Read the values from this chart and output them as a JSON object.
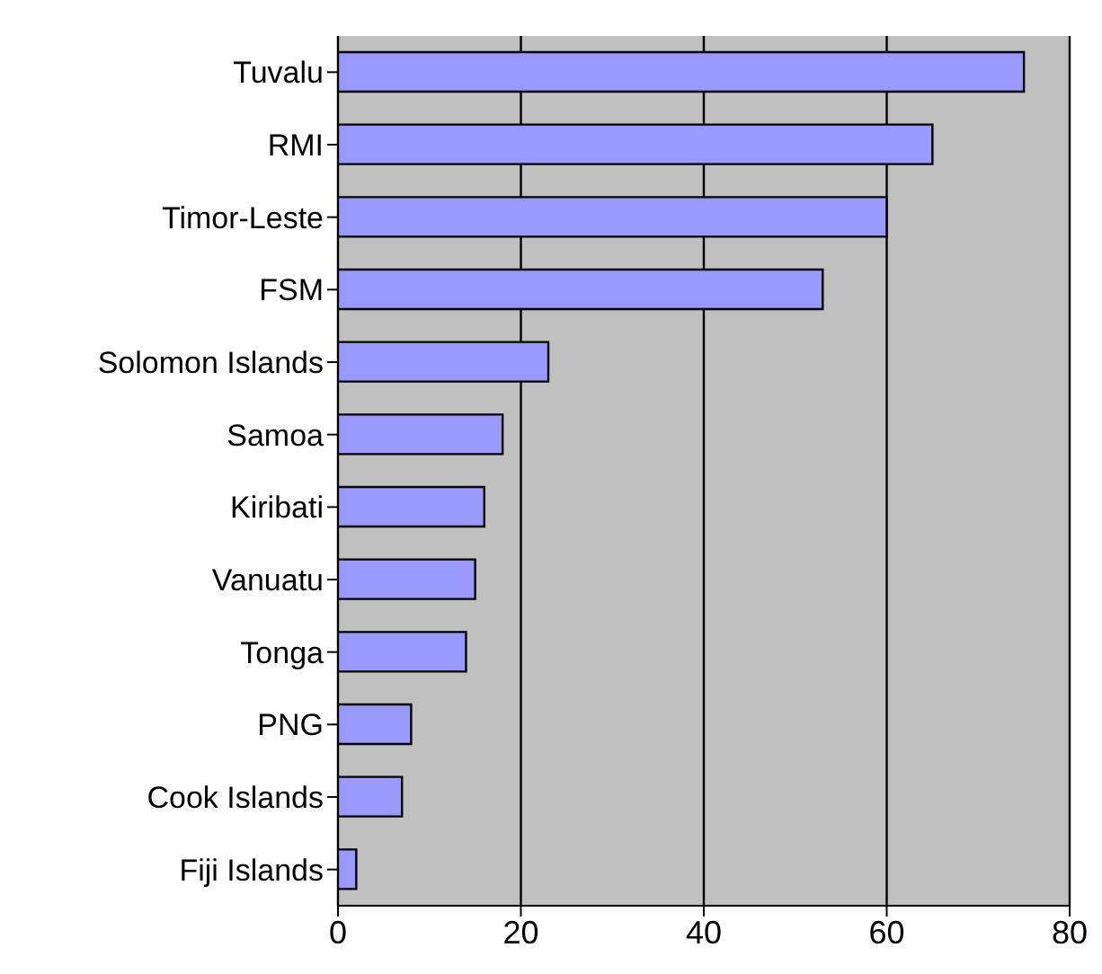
{
  "chart_data": {
    "type": "bar",
    "orientation": "horizontal",
    "categories": [
      "Tuvalu",
      "RMI",
      "Timor-Leste",
      "FSM",
      "Solomon Islands",
      "Samoa",
      "Kiribati",
      "Vanuatu",
      "Tonga",
      "PNG",
      "Cook Islands",
      "Fiji Islands"
    ],
    "values": [
      75,
      65,
      60,
      53,
      23,
      18,
      16,
      15,
      14,
      8,
      7,
      2
    ],
    "color": "#9999ff",
    "xlim": [
      0,
      80
    ],
    "xticks": [
      0,
      20,
      40,
      60,
      80
    ],
    "grid": "x"
  }
}
